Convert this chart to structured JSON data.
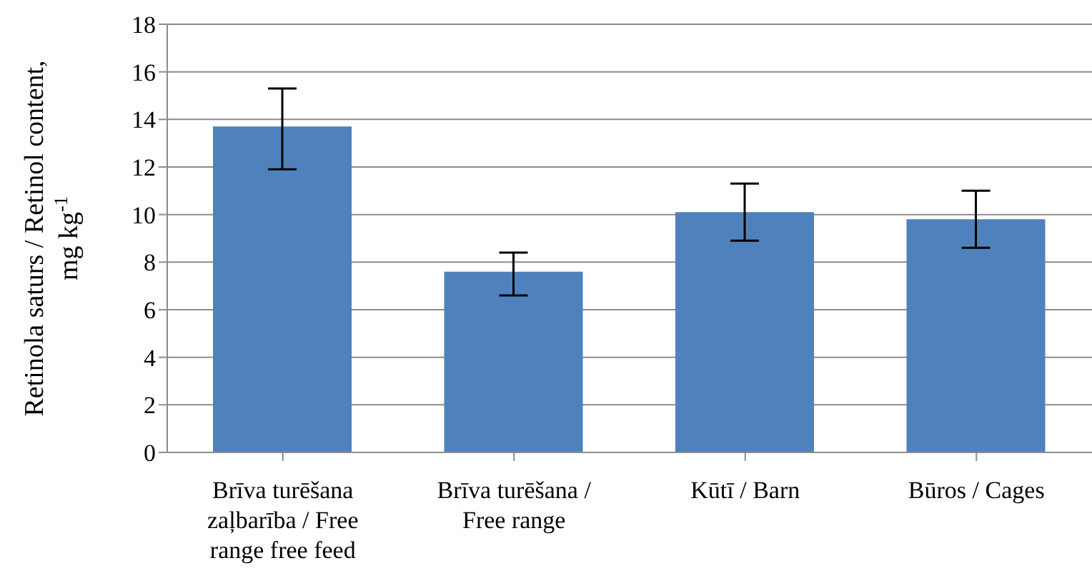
{
  "chart_data": {
    "type": "bar",
    "ylabel": "Retinola saturs / Retinol content, mg kg$^{-1}$",
    "categories": [
      "Brīva turēšana zaļbarība / Free range free feed",
      "Brīva turēšana / Free range",
      "Kūtī / Barn",
      "Būros / Cages"
    ],
    "values": [
      13.7,
      7.6,
      10.1,
      9.8
    ],
    "errors": [
      [
        11.9,
        15.3
      ],
      [
        6.6,
        8.4
      ],
      [
        8.9,
        11.3
      ],
      [
        8.6,
        11.0
      ]
    ],
    "color": "#4f81bd",
    "ylim": [
      0,
      18
    ],
    "yticks": [
      0,
      2,
      4,
      6,
      8,
      10,
      12,
      14,
      16,
      18
    ],
    "grid": "y",
    "legend": false
  }
}
